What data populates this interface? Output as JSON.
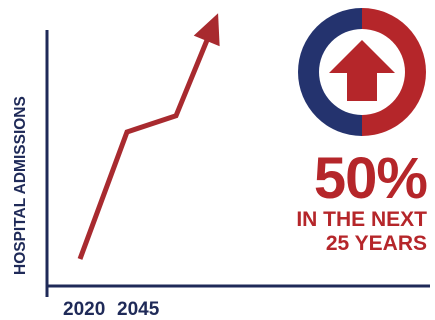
{
  "chart_data": {
    "type": "line",
    "ylabel": "HOSPITAL ADMISSIONS",
    "x_tick_labels": [
      "2020",
      "2045"
    ],
    "series": [
      {
        "values": [
          0.0,
          0.55,
          0.62,
          1.0
        ]
      }
    ],
    "trend": "increase",
    "colors": {
      "line": "#a82a2f",
      "axis": "#1f2a58"
    }
  },
  "callout": {
    "percent": "50%",
    "line1": "IN THE NEXT",
    "line2": "25 YEARS",
    "icon": "up-arrow-circle-icon",
    "colors": {
      "left_ring": "#24336e",
      "right_ring": "#b5262a",
      "arrow": "#b5262a"
    }
  }
}
